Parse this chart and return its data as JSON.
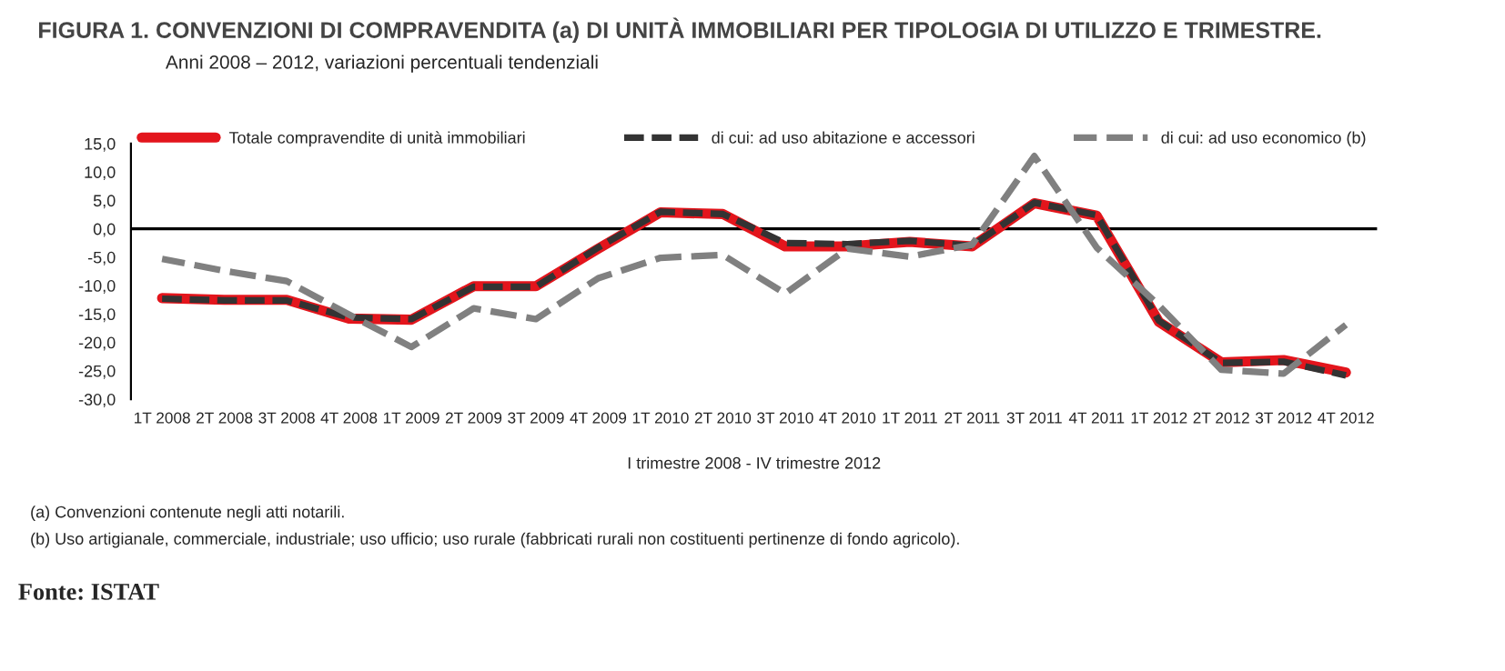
{
  "chart_data": {
    "type": "line",
    "title": "FIGURA 1. CONVENZIONI DI COMPRAVENDITA (a) DI UNITÀ IMMOBILIARI PER TIPOLOGIA DI UTILIZZO E TRIMESTRE.",
    "subtitle": "Anni 2008 – 2012, variazioni percentuali tendenziali",
    "xlabel": "I trimestre 2008 - IV trimestre 2012",
    "categories": [
      "1T 2008",
      "2T 2008",
      "3T 2008",
      "4T 2008",
      "1T 2009",
      "2T 2009",
      "3T 2009",
      "4T 2009",
      "1T 2010",
      "2T 2010",
      "3T 2010",
      "4T 2010",
      "1T 2011",
      "2T 2011",
      "3T 2011",
      "4T 2011",
      "1T 2012",
      "2T 2012",
      "3T 2012",
      "4T 2012"
    ],
    "series": [
      {
        "name": "Totale compravendite di unità immobiliari",
        "color": "#e3151c",
        "line_style": "solid",
        "values": [
          -12.2,
          -12.5,
          -12.5,
          -15.8,
          -16.0,
          -10.1,
          -10.1,
          -3.5,
          2.9,
          2.6,
          -3.1,
          -3.1,
          -2.3,
          -3.1,
          4.5,
          2.3,
          -16.4,
          -23.5,
          -23.1,
          -25.3
        ]
      },
      {
        "name": "di cui: ad uso abitazione e accessori",
        "color": "#333333",
        "line_style": "dashed",
        "values": [
          -12.3,
          -12.6,
          -12.6,
          -15.6,
          -15.9,
          -10.2,
          -10.2,
          -3.3,
          3.0,
          2.6,
          -2.5,
          -2.7,
          -2.1,
          -3.0,
          4.6,
          2.4,
          -16.2,
          -23.6,
          -23.4,
          -25.8
        ]
      },
      {
        "name": "di cui: ad uso economico (b)",
        "color": "#808080",
        "line_style": "dashed",
        "values": [
          -5.3,
          -7.4,
          -9.2,
          -15.1,
          -20.8,
          -14.0,
          -15.9,
          -8.7,
          -5.1,
          -4.6,
          -11.4,
          -3.5,
          -4.9,
          -2.8,
          12.8,
          -3.3,
          -13.5,
          -24.8,
          -25.5,
          -16.9
        ]
      }
    ],
    "ylim": [
      -30,
      15
    ],
    "yticks": [
      {
        "value": 15,
        "label": "15,0"
      },
      {
        "value": 10,
        "label": "10,0"
      },
      {
        "value": 5,
        "label": "5,0"
      },
      {
        "value": 0,
        "label": "0,0"
      },
      {
        "value": -5,
        "label": "-5,0"
      },
      {
        "value": -10,
        "label": "-10,0"
      },
      {
        "value": -15,
        "label": "-15,0"
      },
      {
        "value": -20,
        "label": "-20,0"
      },
      {
        "value": -25,
        "label": "-25,0"
      },
      {
        "value": -30,
        "label": "-30,0"
      }
    ],
    "grid": false,
    "ref_lines": [
      {
        "axis": "y",
        "value": 0,
        "color": "#000000"
      }
    ],
    "legend": "top",
    "marker": "none",
    "annotations": [
      "(a) Convenzioni contenute negli atti notarili.",
      "(b) Uso artigianale, commerciale, industriale; uso ufficio; uso rurale (fabbricati rurali non costituenti pertinenze di fondo agricolo).",
      "Fonte: ISTAT"
    ]
  }
}
